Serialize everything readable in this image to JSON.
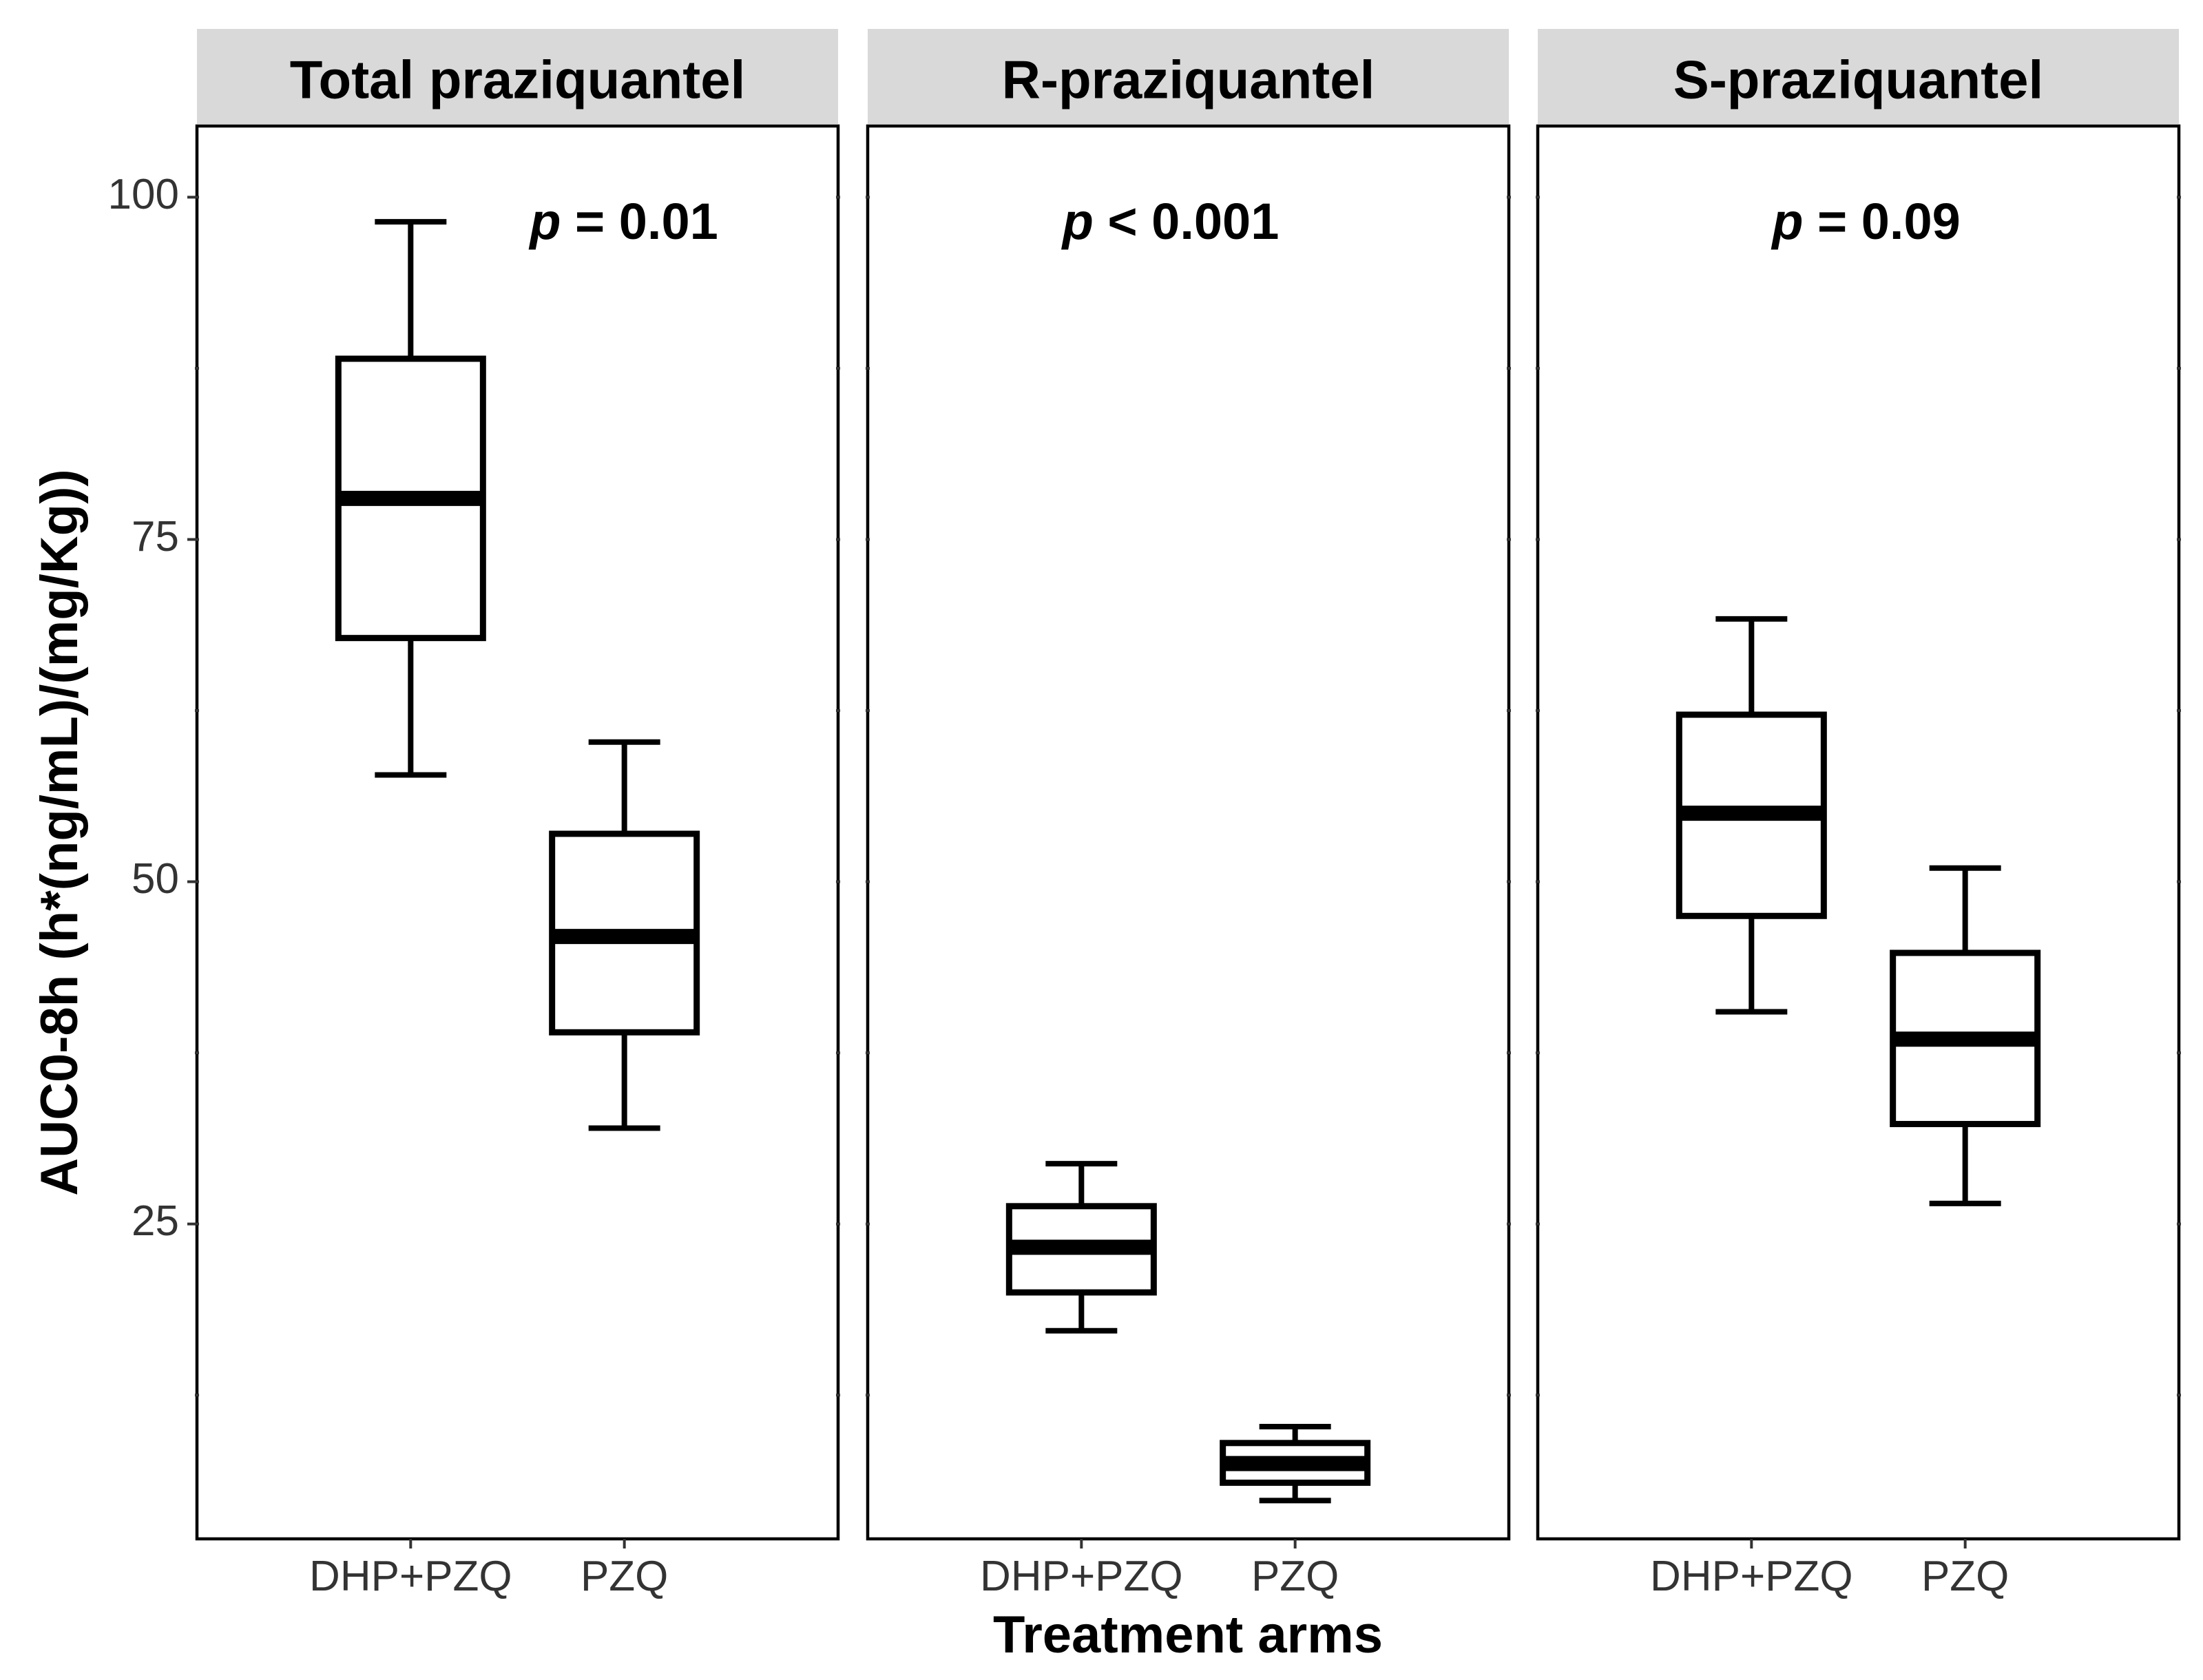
{
  "chart_data": {
    "type": "box",
    "facets": [
      {
        "title": "Total praziquantel",
        "annotation": {
          "prefix": "p",
          "text": " = 0.01"
        },
        "boxes": [
          {
            "category": "DHP+PZQ",
            "min": 57.8,
            "q1": 67.8,
            "median": 78.0,
            "q3": 88.2,
            "max": 98.2
          },
          {
            "category": "PZQ",
            "min": 32.0,
            "q1": 39.0,
            "median": 46.0,
            "q3": 53.5,
            "max": 60.2
          }
        ]
      },
      {
        "title": "R-praziquantel",
        "annotation": {
          "prefix": "p",
          "text": " < 0.001"
        },
        "boxes": [
          {
            "category": "DHP+PZQ",
            "min": 17.2,
            "q1": 20.0,
            "median": 23.3,
            "q3": 26.3,
            "max": 29.4
          },
          {
            "category": "PZQ",
            "min": 4.8,
            "q1": 6.1,
            "median": 7.5,
            "q3": 9.0,
            "max": 10.2
          }
        ]
      },
      {
        "title": "S-praziquantel",
        "annotation": {
          "prefix": "p",
          "text": " = 0.09"
        },
        "boxes": [
          {
            "category": "DHP+PZQ",
            "min": 40.5,
            "q1": 47.5,
            "median": 55.0,
            "q3": 62.2,
            "max": 69.2
          },
          {
            "category": "PZQ",
            "min": 26.5,
            "q1": 32.3,
            "median": 38.5,
            "q3": 44.8,
            "max": 51.0
          }
        ]
      }
    ],
    "categories": [
      "DHP+PZQ",
      "PZQ"
    ],
    "y_ticks": [
      25,
      50,
      75,
      100
    ],
    "y_tick_labels": [
      "25",
      "50",
      "75",
      "100"
    ],
    "ylim": [
      2.0,
      105.2
    ],
    "xlabel": "Treatment arms",
    "ylabel": "AUC0-8h (h*(ng/mL)/(mg/Kg))",
    "grid": false,
    "legend": "none"
  }
}
